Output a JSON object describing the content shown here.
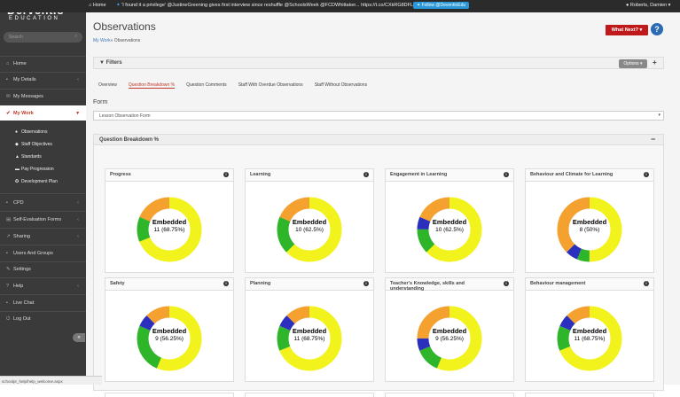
{
  "topbar": {
    "home_label": "Home",
    "tweet": "'I found it a privilege' @JustineGreening gives first interview since reshuffle @SchoolsWeek @FCDWhittaker... https://t.co/CXkRG8DFLx",
    "follow_label": "Follow @DeventioEdu",
    "user_name": "Roberts, Damien"
  },
  "logo": {
    "line1": "Derventio",
    "line2": "EDUCATION"
  },
  "search": {
    "placeholder": "Search"
  },
  "nav": {
    "home": "Home",
    "my_details": "My Details",
    "my_messages": "My Messages",
    "my_work": "My Work",
    "sub": {
      "observations": "Observations",
      "staff_objectives": "Staff Objectives",
      "standards": "Standards",
      "pay_progression": "Pay Progression",
      "development_plan": "Development Plan"
    },
    "cpd": "CPD",
    "self_evaluation": "Self-Evaluation Forms",
    "sharing": "Sharing",
    "users_groups": "Users And Groups",
    "settings": "Settings",
    "help": "Help",
    "live_chat": "Live Chat",
    "log_out": "Log Out"
  },
  "status_url": "schoolpr_help/help_welcome.aspx",
  "page": {
    "title": "Observations",
    "breadcrumb_link": "My Work",
    "breadcrumb_current": "» Observations",
    "what_next": "What Next?",
    "help_icon": "?"
  },
  "filters": {
    "title": "Filters",
    "options": "Options",
    "add": "+"
  },
  "tabs": [
    "Overview",
    "Question Breakdown %",
    "Question Comments",
    "Staff With Overdue Observations",
    "Staff Without Observations"
  ],
  "active_tab": 1,
  "form": {
    "label": "Form",
    "selected": "Lesson Observation Form"
  },
  "breakdown": {
    "title": "Question Breakdown %",
    "toggle": "−"
  },
  "colors": {
    "yellow": "#f2f21c",
    "orange": "#f4a12f",
    "green": "#2fb52a",
    "blue": "#2a2fbd",
    "accent": "#c0191b"
  },
  "cards": [
    {
      "title": "Progress",
      "label": "Embedded",
      "value": "11 (68.75%)",
      "segments": [
        {
          "color": "yellow",
          "pct": 68.75
        },
        {
          "color": "green",
          "pct": 12.5
        },
        {
          "color": "orange",
          "pct": 18.75
        }
      ]
    },
    {
      "title": "Learning",
      "label": "Embedded",
      "value": "10 (62.5%)",
      "segments": [
        {
          "color": "yellow",
          "pct": 62.5
        },
        {
          "color": "green",
          "pct": 18.75
        },
        {
          "color": "orange",
          "pct": 18.75
        }
      ]
    },
    {
      "title": "Engagement in Learning",
      "label": "Embedded",
      "value": "10 (62.5%)",
      "segments": [
        {
          "color": "yellow",
          "pct": 62.5
        },
        {
          "color": "green",
          "pct": 12.5
        },
        {
          "color": "blue",
          "pct": 6.25
        },
        {
          "color": "orange",
          "pct": 18.75
        }
      ]
    },
    {
      "title": "Behaviour and Climate for Learning",
      "label": "Embedded",
      "value": "8 (50%)",
      "segments": [
        {
          "color": "yellow",
          "pct": 50
        },
        {
          "color": "green",
          "pct": 6.25
        },
        {
          "color": "blue",
          "pct": 6.25
        },
        {
          "color": "orange",
          "pct": 37.5
        }
      ]
    },
    {
      "title": "Safety",
      "label": "Embedded",
      "value": "9 (56.25%)",
      "segments": [
        {
          "color": "yellow",
          "pct": 56.25
        },
        {
          "color": "green",
          "pct": 25
        },
        {
          "color": "blue",
          "pct": 6.25
        },
        {
          "color": "orange",
          "pct": 12.5
        }
      ]
    },
    {
      "title": "Planning",
      "label": "Embedded",
      "value": "11 (68.75%)",
      "segments": [
        {
          "color": "yellow",
          "pct": 68.75
        },
        {
          "color": "green",
          "pct": 12.5
        },
        {
          "color": "blue",
          "pct": 6.25
        },
        {
          "color": "orange",
          "pct": 12.5
        }
      ]
    },
    {
      "title": "Teacher's Knowledge, skills and understanding",
      "label": "Embedded",
      "value": "9 (56.25%)",
      "segments": [
        {
          "color": "yellow",
          "pct": 56.25
        },
        {
          "color": "green",
          "pct": 12.5
        },
        {
          "color": "blue",
          "pct": 6.25
        },
        {
          "color": "orange",
          "pct": 25
        }
      ]
    },
    {
      "title": "Behaviour management",
      "label": "Embedded",
      "value": "11 (68.75%)",
      "segments": [
        {
          "color": "yellow",
          "pct": 68.75
        },
        {
          "color": "green",
          "pct": 12.5
        },
        {
          "color": "blue",
          "pct": 6.25
        },
        {
          "color": "orange",
          "pct": 12.5
        }
      ]
    }
  ]
}
